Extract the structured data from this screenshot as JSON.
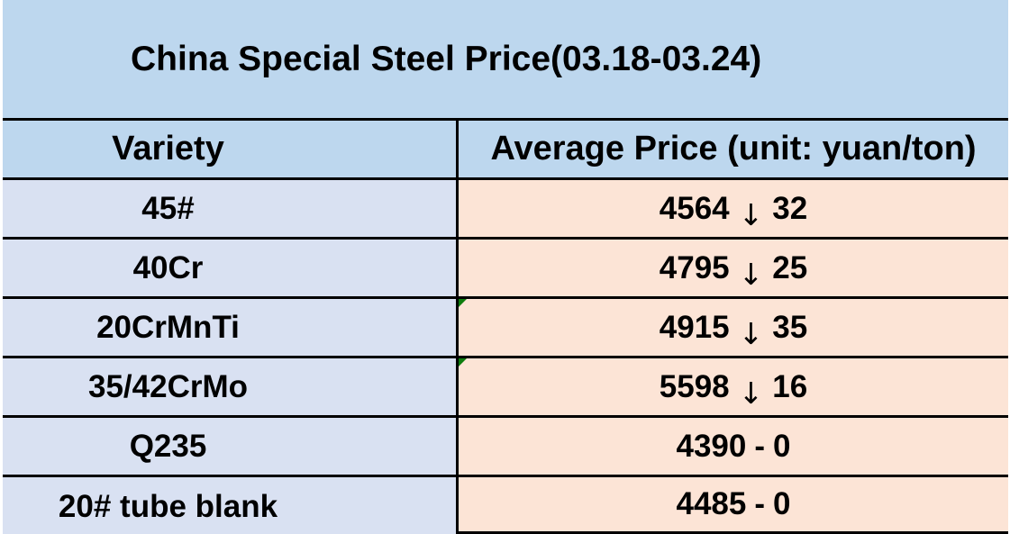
{
  "chart_data": {
    "type": "table",
    "title": "China Special Steel Price(03.18-03.24)",
    "columns": [
      "Variety",
      "Average Price (unit: yuan/ton)"
    ],
    "rows": [
      [
        "45#",
        "4564 ↓ 32"
      ],
      [
        "40Cr",
        "4795 ↓ 25"
      ],
      [
        "20CrMnTi",
        "4915 ↓ 35"
      ],
      [
        "35/42CrMo",
        "5598 ↓ 16"
      ],
      [
        "Q235",
        "4390 - 0"
      ],
      [
        "20# tube blank",
        "4485 - 0"
      ]
    ]
  },
  "table": {
    "title": "China Special Steel Price(03.18-03.24)",
    "columns": [
      "Variety",
      "Average Price (unit: yuan/ton)"
    ],
    "rows": [
      {
        "variety": "45#",
        "avg_price": "4564",
        "change_symbol": "↓",
        "change_value": "32",
        "corner_marker": false
      },
      {
        "variety": "40Cr",
        "avg_price": "4795",
        "change_symbol": "↓",
        "change_value": "25",
        "corner_marker": false
      },
      {
        "variety": "20CrMnTi",
        "avg_price": "4915",
        "change_symbol": "↓",
        "change_value": "35",
        "corner_marker": true
      },
      {
        "variety": "35/42CrMo",
        "avg_price": "5598",
        "change_symbol": "↓",
        "change_value": "16",
        "corner_marker": true
      },
      {
        "variety": "Q235",
        "avg_price": "4390",
        "change_symbol": "-",
        "change_value": "0",
        "corner_marker": false
      },
      {
        "variety": "20# tube blank",
        "avg_price": "4485",
        "change_symbol": "-",
        "change_value": "0",
        "corner_marker": false
      }
    ]
  },
  "colors": {
    "title_header_blue": "#BDD7EE",
    "variety_lavender": "#D9E1F2",
    "price_peach": "#FCE4D6",
    "border_black": "#000000",
    "corner_marker_green": "#0E7C0E"
  }
}
